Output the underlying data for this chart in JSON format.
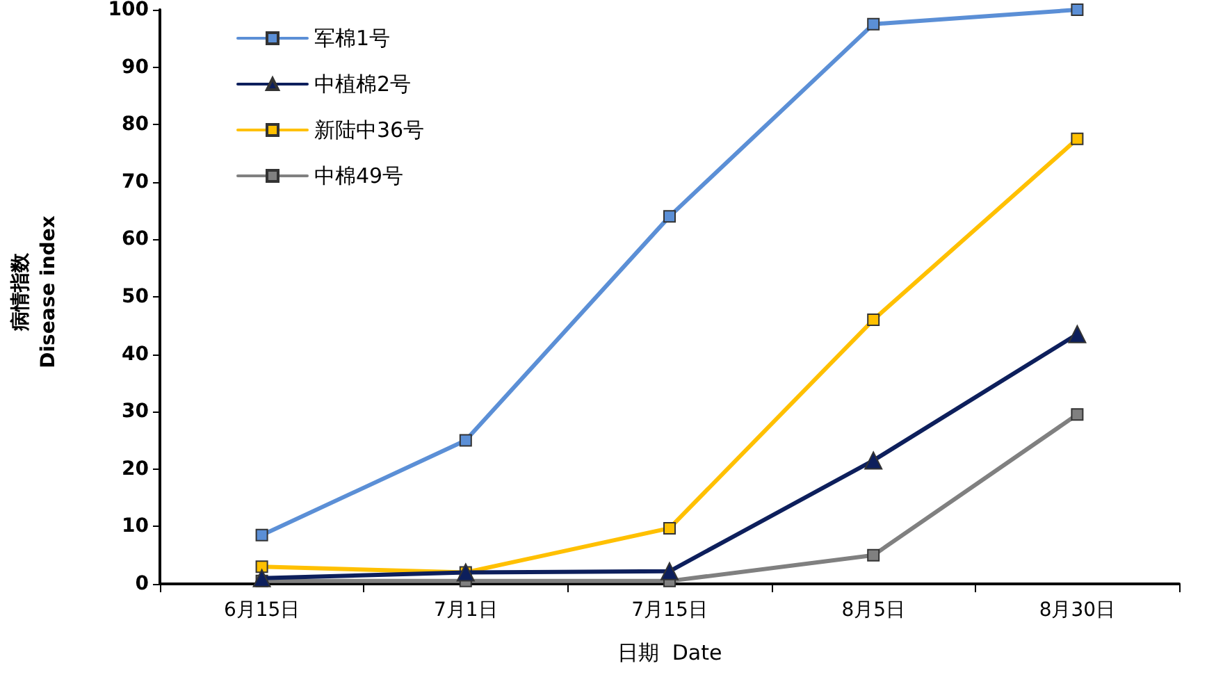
{
  "chart_data": {
    "type": "line",
    "xlabel": "日期  Date",
    "ylabel": "病情指数\nDisease index",
    "categories": [
      "6月15日",
      "7月1日",
      "7月15日",
      "8月5日",
      "8月30日"
    ],
    "series": [
      {
        "name": "军棉1号",
        "color": "#5b8fd6",
        "marker": "square",
        "values": [
          8.5,
          25,
          64,
          97.5,
          100
        ]
      },
      {
        "name": "中植棉2号",
        "color": "#0d1f5c",
        "marker": "triangle",
        "values": [
          1,
          2,
          2.2,
          21.5,
          43.5
        ]
      },
      {
        "name": "新陆中36号",
        "color": "#ffc000",
        "marker": "square",
        "values": [
          3,
          2,
          9.7,
          46,
          77.5
        ]
      },
      {
        "name": "中棉49号",
        "color": "#808080",
        "marker": "square",
        "values": [
          0.5,
          0.5,
          0.5,
          5,
          29.5
        ]
      }
    ],
    "ylim": [
      0,
      100
    ],
    "yticks": [
      0,
      10,
      20,
      30,
      40,
      50,
      60,
      70,
      80,
      90,
      100
    ],
    "grid": false,
    "legend": "top left"
  }
}
